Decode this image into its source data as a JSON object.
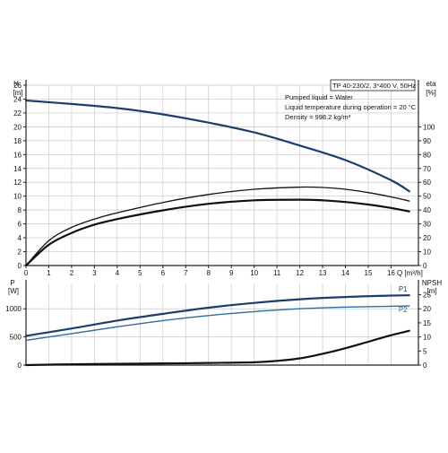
{
  "colors": {
    "grid": "#c8c8c8",
    "axis": "#222222",
    "dark_blue": "#1b3f6b",
    "mid_blue": "#2e6da4",
    "black": "#111111",
    "text": "#111111"
  },
  "chart_data": [
    {
      "type": "line",
      "panel": "pump-curves",
      "title": "TP 40-230/2, 3*400 V, 50Hz",
      "annotations": [
        "Pumped liquid = Water",
        "Liquid temperature during operation = 20 °C",
        "Density = 998.2 kg/m³"
      ],
      "xlabel": "Q [m³/h]",
      "ylabel_left": [
        "H",
        "[m]"
      ],
      "ylabel_right": [
        "eta",
        "[%]"
      ],
      "x_ticks": [
        0,
        1,
        2,
        3,
        4,
        5,
        6,
        7,
        8,
        9,
        10,
        11,
        12,
        13,
        14,
        15,
        16
      ],
      "xlim": [
        0,
        17.2
      ],
      "y_left_ticks": [
        0,
        2,
        4,
        6,
        8,
        10,
        12,
        14,
        16,
        18,
        20,
        22,
        24,
        26
      ],
      "ylim_left": [
        0,
        26
      ],
      "y_right_ticks": [
        0,
        10,
        20,
        30,
        40,
        50,
        60,
        70,
        80,
        90,
        100
      ],
      "ylim_right": [
        0,
        130
      ],
      "series": [
        {
          "axis": "left",
          "color_key": "dark_blue",
          "x": [
            0,
            2,
            4,
            6,
            8,
            10,
            12,
            14,
            16,
            16.8
          ],
          "values": [
            23.8,
            23.3,
            22.7,
            21.8,
            20.6,
            19.2,
            17.3,
            15.2,
            12.3,
            10.7
          ]
        },
        {
          "axis": "right",
          "color_key": "black",
          "width": 1.3,
          "x": [
            0,
            1,
            2,
            3,
            4,
            6,
            8,
            10,
            12,
            13,
            14,
            15,
            16,
            16.8
          ],
          "values": [
            0,
            18,
            27.5,
            33.5,
            38,
            45.5,
            51.2,
            55,
            56.5,
            56.3,
            55,
            52.6,
            49.5,
            46.5
          ]
        },
        {
          "axis": "right",
          "color_key": "black",
          "width": 2.2,
          "x": [
            0,
            1,
            2,
            3,
            4,
            6,
            8,
            10,
            12,
            13,
            14,
            15,
            16,
            16.8
          ],
          "values": [
            0,
            15,
            23.5,
            29.5,
            33.5,
            39.8,
            44.5,
            47,
            47.5,
            47,
            45.8,
            44,
            41.5,
            39
          ]
        }
      ]
    },
    {
      "type": "line",
      "panel": "power-npsh",
      "xlim": [
        0,
        17.2
      ],
      "ylabel_left": [
        "P",
        "[W]"
      ],
      "ylabel_right": [
        "NPSH",
        "[m]"
      ],
      "y_left_ticks": [
        0,
        500,
        1000
      ],
      "ylim_left": [
        0,
        1450
      ],
      "y_right_ticks": [
        0,
        5,
        10,
        15,
        20,
        25
      ],
      "ylim_right": [
        0,
        29
      ],
      "series": [
        {
          "name": "P1",
          "axis": "left",
          "color_key": "dark_blue",
          "width": 2.2,
          "x": [
            0,
            2,
            4,
            6,
            8,
            10,
            12,
            14,
            16,
            16.8
          ],
          "values": [
            520,
            650,
            790,
            910,
            1020,
            1105,
            1170,
            1210,
            1235,
            1240
          ]
        },
        {
          "name": "P2",
          "axis": "left",
          "color_key": "mid_blue",
          "width": 1.4,
          "x": [
            0,
            2,
            4,
            6,
            8,
            10,
            12,
            14,
            16,
            16.8
          ],
          "values": [
            440,
            560,
            680,
            790,
            880,
            950,
            1000,
            1030,
            1045,
            1050
          ]
        },
        {
          "axis": "right",
          "color_key": "black",
          "width": 2.2,
          "x": [
            0,
            2,
            4,
            6,
            8,
            10,
            11,
            12,
            13,
            14,
            15,
            16,
            16.8
          ],
          "values": [
            0,
            0.3,
            0.45,
            0.6,
            0.75,
            1.0,
            1.5,
            2.4,
            4.0,
            6.0,
            8.3,
            10.6,
            12.2
          ]
        }
      ]
    }
  ]
}
